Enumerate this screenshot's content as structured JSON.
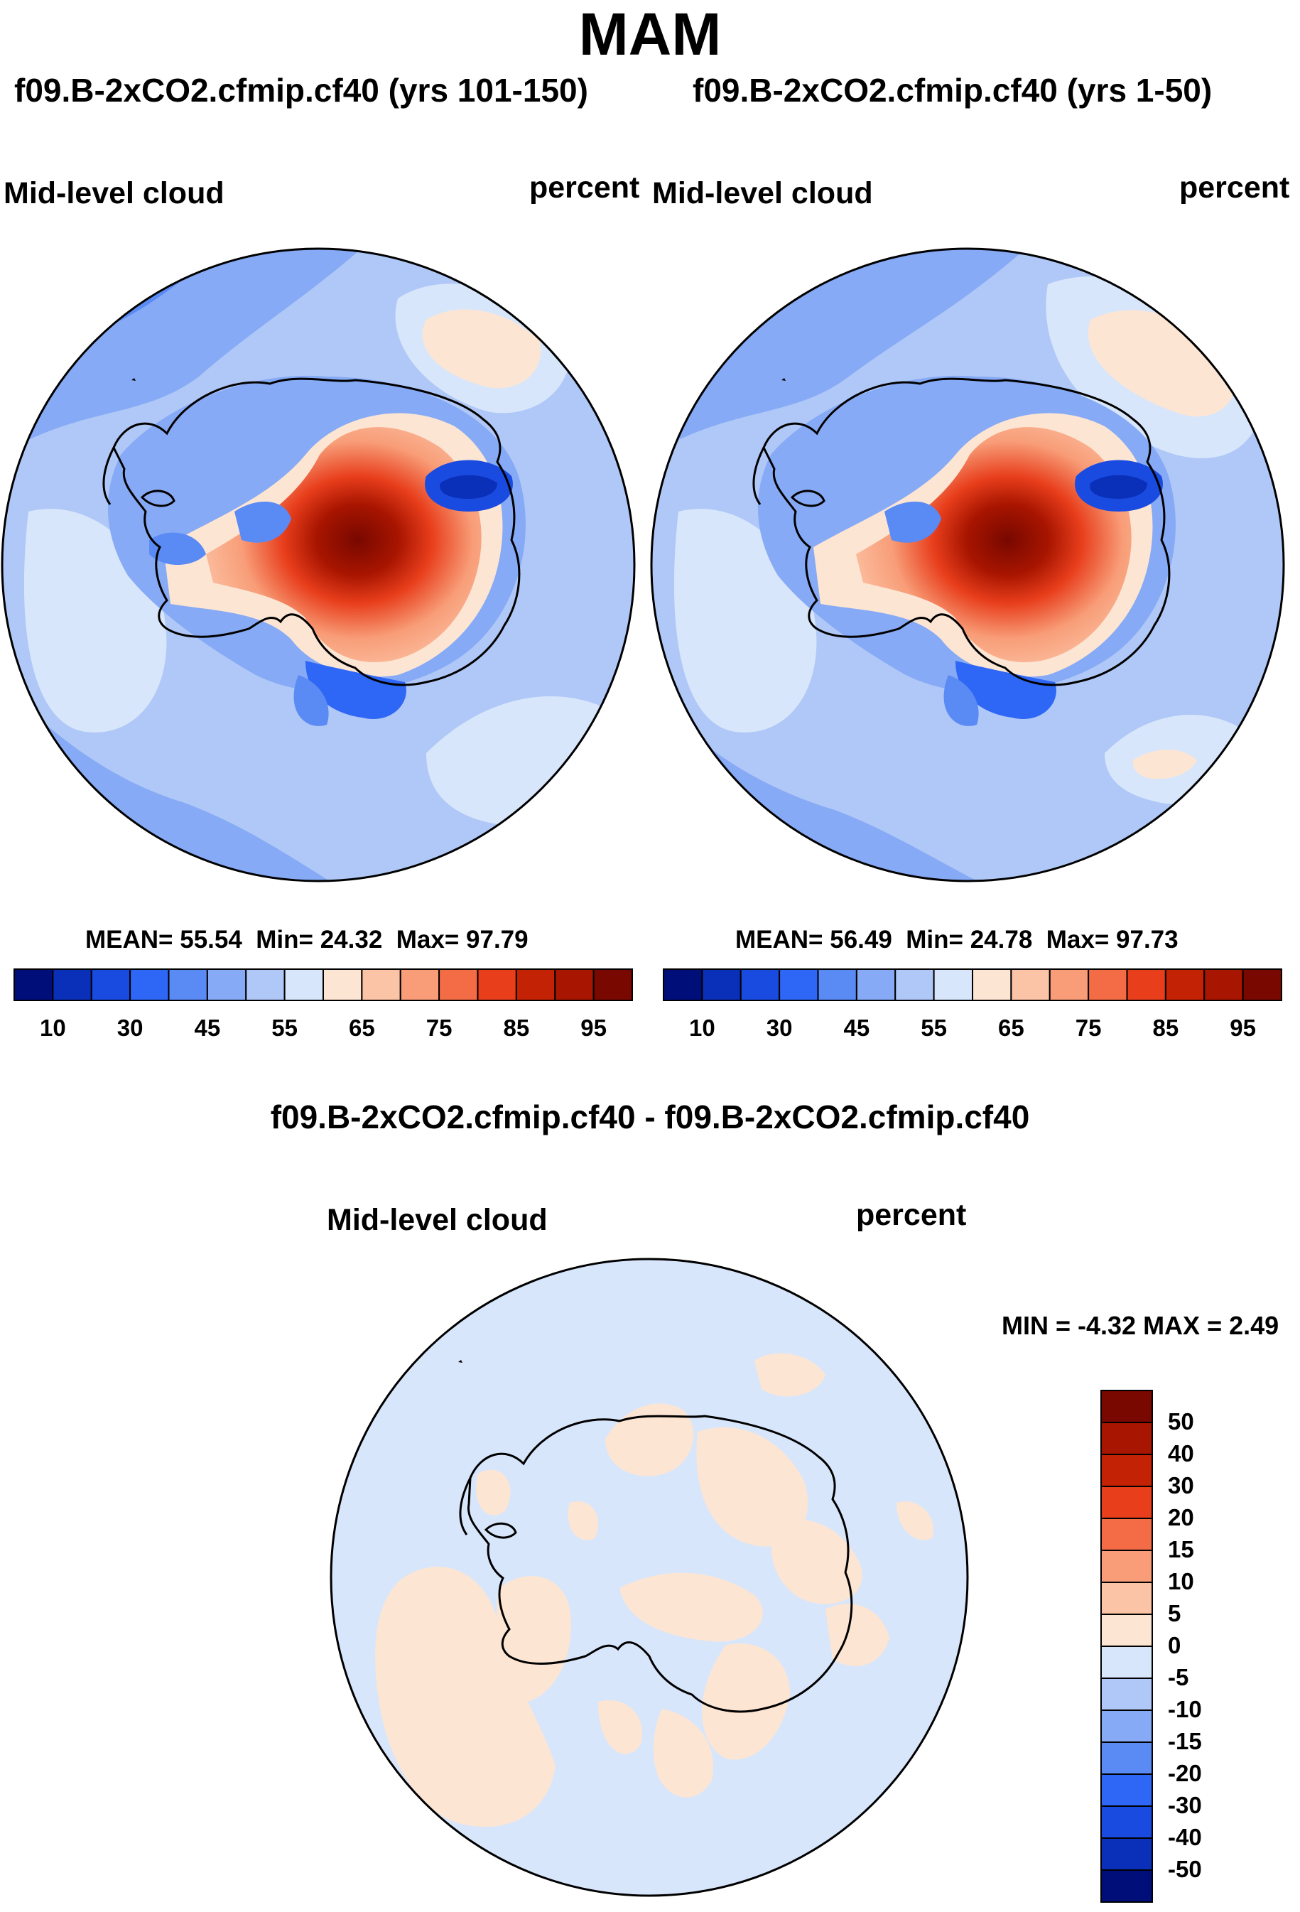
{
  "figure": {
    "title": "MAM",
    "panels": [
      {
        "title": "f09.B-2xCO2.cfmip.cf40 (yrs 101-150)",
        "left_label": "Mid-level cloud",
        "right_label": "percent",
        "stats": {
          "mean_label": "MEAN=",
          "mean": "55.54",
          "min_label": "Min=",
          "min": "24.32",
          "max_label": "Max=",
          "max": "97.79"
        }
      },
      {
        "title": "f09.B-2xCO2.cfmip.cf40 (yrs 1-50)",
        "left_label": "Mid-level cloud",
        "right_label": "percent",
        "stats": {
          "mean_label": "MEAN=",
          "mean": "56.49",
          "min_label": "Min=",
          "min": "24.78",
          "max_label": "Max=",
          "max": "97.73"
        }
      },
      {
        "title": "f09.B-2xCO2.cfmip.cf40 - f09.B-2xCO2.cfmip.cf40",
        "left_label": "Mid-level cloud",
        "right_label": "percent",
        "minmax": "MIN =  -4.32 MAX =   2.49"
      }
    ],
    "colorbar_abs": {
      "colors": [
        "#000e7a",
        "#0a2fb8",
        "#1a4be0",
        "#2e66f5",
        "#5a8af4",
        "#86aaf5",
        "#b0c8f7",
        "#d8e6fb",
        "#fde5d3",
        "#fcc4a6",
        "#f89d78",
        "#f46c45",
        "#e83e1c",
        "#c32204",
        "#a81500",
        "#780800"
      ],
      "labels": [
        "10",
        "30",
        "45",
        "55",
        "65",
        "75",
        "85",
        "95"
      ]
    },
    "colorbar_diff": {
      "colors": [
        "#000e7a",
        "#0a2fb8",
        "#1a4be0",
        "#2e66f5",
        "#5a8af4",
        "#86aaf5",
        "#b0c8f7",
        "#d8e6fb",
        "#fde5d3",
        "#fcc4a6",
        "#f89d78",
        "#f46c45",
        "#e83e1c",
        "#c32204",
        "#a81500",
        "#780800"
      ],
      "labels": [
        "-50",
        "-40",
        "-30",
        "-20",
        "-15",
        "-10",
        "-5",
        "0",
        "5",
        "10",
        "15",
        "20",
        "30",
        "40",
        "50"
      ]
    },
    "palette": {
      "ocean_abs": "#b0c8f7",
      "ocean_abs_outer": "#86aaf5",
      "diff_background": "#d8e6fb",
      "diff_positive": "#fde5d3",
      "coast": "#000000"
    }
  }
}
